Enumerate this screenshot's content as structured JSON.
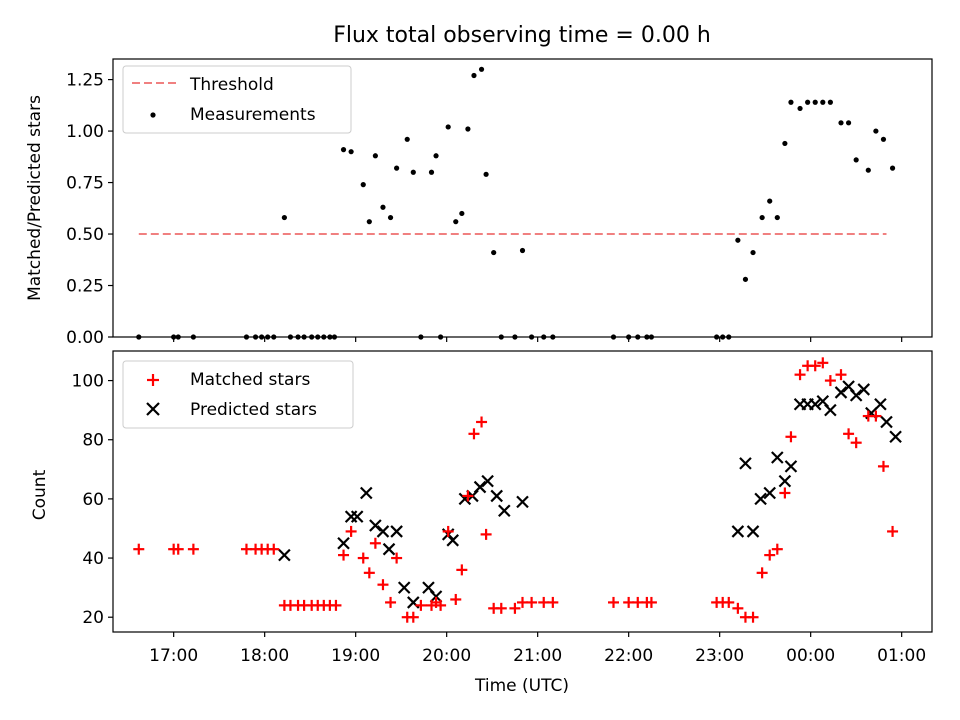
{
  "figure": {
    "title": "Flux total observing time = 0.00 h",
    "colors": {
      "threshold": "#f08080",
      "measurement": "#000000",
      "matched": "#ff0000",
      "predicted": "#000000"
    }
  },
  "chart_data": [
    {
      "type": "scatter",
      "title": "Flux total observing time = 0.00 h",
      "xlabel": "",
      "ylabel": "Matched/Predicted stars",
      "xlim": [
        "16:20",
        "01:20"
      ],
      "ylim": [
        0,
        1.35
      ],
      "yticks": [
        "0.00",
        "0.25",
        "0.50",
        "0.75",
        "1.00",
        "1.25"
      ],
      "grid": false,
      "legend_position": "upper-left",
      "legend": [
        "Threshold",
        "Measurements"
      ],
      "series": [
        {
          "name": "Threshold",
          "style": "dashed-line",
          "x": [
            "16:37",
            "00:50"
          ],
          "y": [
            0.5,
            0.5
          ]
        },
        {
          "name": "Measurements",
          "style": "dots",
          "x": [
            "16:37",
            "17:00",
            "17:03",
            "17:13",
            "17:48",
            "17:54",
            "17:58",
            "18:02",
            "18:06",
            "18:13",
            "18:17",
            "18:22",
            "18:26",
            "18:31",
            "18:35",
            "18:39",
            "18:43",
            "18:46",
            "18:52",
            "18:57",
            "19:05",
            "19:09",
            "19:13",
            "19:18",
            "19:23",
            "19:27",
            "19:34",
            "19:38",
            "19:43",
            "19:50",
            "19:53",
            "19:56",
            "20:01",
            "20:06",
            "20:10",
            "20:14",
            "20:18",
            "20:23",
            "20:26",
            "20:31",
            "20:36",
            "20:45",
            "20:50",
            "20:56",
            "21:04",
            "21:10",
            "21:50",
            "22:00",
            "22:06",
            "22:12",
            "22:15",
            "22:58",
            "23:02",
            "23:06",
            "23:12",
            "23:17",
            "23:22",
            "23:28",
            "23:33",
            "23:38",
            "23:43",
            "23:47",
            "23:53",
            "23:58",
            "00:03",
            "00:08",
            "00:13",
            "00:20",
            "00:25",
            "00:30",
            "00:38",
            "00:43",
            "00:48",
            "00:54"
          ],
          "y": [
            0.0,
            0.0,
            0.0,
            0.0,
            0.0,
            0.0,
            0.0,
            0.0,
            0.0,
            0.58,
            0.0,
            0.0,
            0.0,
            0.0,
            0.0,
            0.0,
            0.0,
            0.0,
            0.91,
            0.9,
            0.74,
            0.56,
            0.88,
            0.63,
            0.58,
            0.82,
            0.96,
            0.8,
            0.0,
            0.8,
            0.88,
            0.0,
            1.02,
            0.56,
            0.6,
            1.01,
            1.27,
            1.3,
            0.79,
            0.41,
            0.0,
            0.0,
            0.42,
            0.0,
            0.0,
            0.0,
            0.0,
            0.0,
            0.0,
            0.0,
            0.0,
            0.0,
            0.0,
            0.0,
            0.47,
            0.28,
            0.41,
            0.58,
            0.66,
            0.58,
            0.94,
            1.14,
            1.11,
            1.14,
            1.14,
            1.14,
            1.14,
            1.04,
            1.04,
            0.86,
            0.81,
            1.0,
            0.96,
            0.82
          ]
        }
      ]
    },
    {
      "type": "scatter",
      "title": "",
      "xlabel": "Time (UTC)",
      "ylabel": "Count",
      "xlim": [
        "16:20",
        "01:20"
      ],
      "ylim": [
        15,
        110
      ],
      "xticks": [
        "17:00",
        "18:00",
        "19:00",
        "20:00",
        "21:00",
        "22:00",
        "23:00",
        "00:00",
        "01:00"
      ],
      "yticks": [
        "20",
        "40",
        "60",
        "80",
        "100"
      ],
      "grid": false,
      "legend_position": "upper-left",
      "legend": [
        "Matched stars",
        "Predicted stars"
      ],
      "series": [
        {
          "name": "Matched stars",
          "marker": "+",
          "x": [
            "16:37",
            "17:00",
            "17:03",
            "17:13",
            "17:48",
            "17:54",
            "17:58",
            "18:02",
            "18:06",
            "18:13",
            "18:17",
            "18:22",
            "18:26",
            "18:31",
            "18:35",
            "18:39",
            "18:43",
            "18:47",
            "18:52",
            "18:57",
            "19:05",
            "19:09",
            "19:13",
            "19:18",
            "19:23",
            "19:27",
            "19:34",
            "19:38",
            "19:43",
            "19:50",
            "19:53",
            "19:56",
            "20:01",
            "20:06",
            "20:10",
            "20:14",
            "20:18",
            "20:23",
            "20:26",
            "20:31",
            "20:36",
            "20:45",
            "20:50",
            "20:56",
            "21:04",
            "21:10",
            "21:50",
            "22:00",
            "22:06",
            "22:12",
            "22:15",
            "22:58",
            "23:02",
            "23:06",
            "23:12",
            "23:17",
            "23:22",
            "23:28",
            "23:33",
            "23:38",
            "23:43",
            "23:47",
            "23:53",
            "23:58",
            "00:03",
            "00:08",
            "00:13",
            "00:20",
            "00:25",
            "00:30",
            "00:38",
            "00:43",
            "00:48",
            "00:54"
          ],
          "y": [
            43,
            43,
            43,
            43,
            43,
            43,
            43,
            43,
            43,
            24,
            24,
            24,
            24,
            24,
            24,
            24,
            24,
            24,
            41,
            49,
            40,
            35,
            45,
            31,
            25,
            40,
            20,
            20,
            24,
            24,
            25,
            24,
            49,
            26,
            36,
            61,
            82,
            86,
            48,
            23,
            23,
            23,
            25,
            25,
            25,
            25,
            25,
            25,
            25,
            25,
            25,
            25,
            25,
            25,
            23,
            20,
            20,
            35,
            41,
            43,
            62,
            81,
            102,
            105,
            105,
            106,
            100,
            102,
            82,
            79,
            88,
            88,
            71,
            49
          ]
        },
        {
          "name": "Predicted stars",
          "marker": "x",
          "x": [
            "18:13",
            "18:52",
            "18:57",
            "19:01",
            "19:07",
            "19:13",
            "19:18",
            "19:22",
            "19:27",
            "19:32",
            "19:38",
            "19:48",
            "19:53",
            "20:01",
            "20:04",
            "20:12",
            "20:17",
            "20:22",
            "20:27",
            "20:33",
            "20:38",
            "20:50",
            "23:12",
            "23:17",
            "23:22",
            "23:27",
            "23:33",
            "23:38",
            "23:43",
            "23:47",
            "23:53",
            "23:58",
            "00:03",
            "00:08",
            "00:13",
            "00:20",
            "00:25",
            "00:30",
            "00:35",
            "00:40",
            "00:46",
            "00:50",
            "00:56"
          ],
          "y": [
            41,
            45,
            54,
            54,
            62,
            51,
            49,
            43,
            49,
            30,
            25,
            30,
            27,
            48,
            46,
            60,
            61,
            64,
            66,
            61,
            56,
            59,
            49,
            72,
            49,
            60,
            62,
            74,
            66,
            71,
            92,
            92,
            92,
            93,
            90,
            96,
            98,
            95,
            97,
            89,
            92,
            86,
            81
          ]
        }
      ]
    }
  ]
}
